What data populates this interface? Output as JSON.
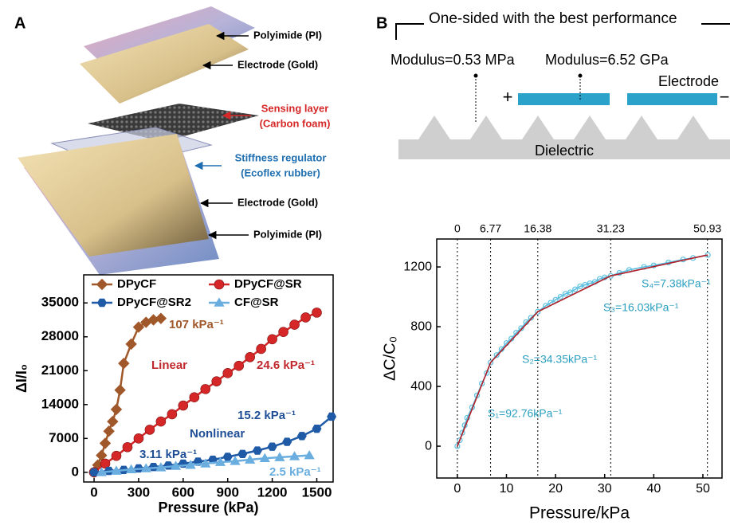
{
  "panel_labels": [
    "A",
    "B"
  ],
  "panel_a_diagram": {
    "labels": [
      "Polyimide (PI)",
      "Electrode (Gold)",
      "Sensing layer",
      "(Carbon foam)",
      "Stiffness regulator",
      "(Ecoflex rubber)",
      "Electrode (Gold)",
      "Polyimide (PI)"
    ]
  },
  "panel_b_diagram": {
    "title": "One-sided with the best performance",
    "modulus_left": "Modulus=0.53 MPa",
    "modulus_right": "Modulus=6.52 GPa",
    "electrode": "Electrode",
    "plus": "+",
    "minus": "−",
    "dielectric": "Dielectric"
  },
  "chart_data": [
    {
      "type": "line",
      "x_label": "Pressure (kPa)",
      "y_label": "ΔI/I₀",
      "xlim": [
        -70,
        1610
      ],
      "ylim": [
        -2000,
        40800
      ],
      "xticks": [
        0,
        300,
        600,
        900,
        1200,
        1500
      ],
      "yticks": [
        0,
        7000,
        14000,
        21000,
        28000,
        35000
      ],
      "legend": "upper left",
      "series": [
        {
          "name": "DPyCF",
          "color": "#a0582a",
          "marker": "diamond",
          "x": [
            0,
            25,
            50,
            75,
            100,
            125,
            150,
            175,
            200,
            250,
            300,
            350,
            400,
            450
          ],
          "values": [
            0,
            1500,
            3500,
            6000,
            8500,
            10500,
            13000,
            17000,
            22500,
            26500,
            30000,
            31000,
            31500,
            31800
          ]
        },
        {
          "name": "DPyCF@SR",
          "color": "#d62728",
          "marker": "circle",
          "x": [
            0,
            75,
            150,
            225,
            300,
            375,
            450,
            525,
            600,
            675,
            750,
            825,
            900,
            975,
            1050,
            1125,
            1200,
            1275,
            1350,
            1425,
            1500
          ],
          "values": [
            0,
            1800,
            3400,
            5200,
            7000,
            8800,
            10500,
            12000,
            13800,
            15500,
            17200,
            18800,
            20500,
            22000,
            23800,
            25500,
            27500,
            29000,
            30500,
            32000,
            33000
          ]
        },
        {
          "name": "DPyCF@SR2",
          "color": "#1f5aa6",
          "marker": "hexagon",
          "x": [
            0,
            100,
            200,
            300,
            400,
            500,
            600,
            700,
            800,
            900,
            1000,
            1100,
            1200,
            1300,
            1400,
            1500,
            1600
          ],
          "values": [
            0,
            300,
            500,
            800,
            1100,
            1400,
            1800,
            2200,
            2600,
            3200,
            3800,
            4500,
            5300,
            6300,
            7500,
            9000,
            11500
          ]
        },
        {
          "name": "CF@SR",
          "color": "#6aaee0",
          "marker": "triangle",
          "x": [
            50,
            150,
            250,
            350,
            450,
            550,
            650,
            750,
            850,
            950,
            1050,
            1150,
            1250,
            1350,
            1450
          ],
          "values": [
            0,
            300,
            600,
            800,
            1000,
            1300,
            1500,
            1800,
            2100,
            2300,
            2600,
            2900,
            3100,
            3300,
            3500
          ]
        }
      ],
      "annotations": [
        {
          "text": "107 kPa⁻¹",
          "color": "#a0582a"
        },
        {
          "text": "Linear",
          "color": "#c0282d"
        },
        {
          "text": "24.6 kPa⁻¹",
          "color": "#c0282d"
        },
        {
          "text": "15.2 kPa⁻¹",
          "color": "#1f4f96"
        },
        {
          "text": "Nonlinear",
          "color": "#1f4f96"
        },
        {
          "text": "3.11 kPa⁻¹",
          "color": "#1f4f96"
        },
        {
          "text": "2.5 kPa⁻¹",
          "color": "#6aaee0"
        }
      ]
    },
    {
      "type": "line",
      "x_label": "Pressure/kPa",
      "y_label": "ΔC/C₀",
      "xlim": [
        -4.2,
        53.9
      ],
      "ylim": [
        -213,
        1387
      ],
      "xticks": [
        0,
        10,
        20,
        30,
        40,
        50
      ],
      "yticks": [
        0,
        400,
        800,
        1200
      ],
      "x2ticks": [
        0,
        6.77,
        16.38,
        31.23,
        50.93
      ],
      "series": [
        {
          "color": "#5bbfe0",
          "marker": "open-circle",
          "x": [
            0,
            0.5,
            1,
            1.5,
            2,
            3,
            4,
            5,
            6,
            6.77,
            8,
            9,
            10,
            11,
            12,
            13,
            14,
            15,
            16.38,
            18,
            19,
            20,
            21,
            22,
            23,
            24,
            25,
            26,
            27,
            28,
            29,
            30,
            31.23,
            33,
            35,
            38,
            40,
            43,
            46,
            48,
            51
          ],
          "values": [
            0,
            40,
            90,
            140,
            190,
            260,
            340,
            420,
            490,
            560,
            610,
            650,
            690,
            720,
            760,
            790,
            830,
            860,
            900,
            940,
            960,
            980,
            1000,
            1020,
            1030,
            1050,
            1070,
            1080,
            1090,
            1100,
            1120,
            1130,
            1140,
            1160,
            1180,
            1200,
            1210,
            1230,
            1250,
            1260,
            1280
          ]
        },
        {
          "color": "#b0202a",
          "marker": "none",
          "x": [
            0,
            6.77,
            16.38,
            31.23,
            50.93
          ],
          "values": [
            0,
            560,
            900,
            1140,
            1280
          ]
        }
      ],
      "annotations": [
        {
          "text": "S₁=92.76kPa⁻¹",
          "color": "#2a9fc0"
        },
        {
          "text": "S₂=34.35kPa⁻¹",
          "color": "#2a9fc0"
        },
        {
          "text": "S₃=16.03kPa⁻¹",
          "color": "#2a9fc0"
        },
        {
          "text": "S₄=7.38kPa⁻¹",
          "color": "#2a9fc0"
        }
      ]
    }
  ]
}
